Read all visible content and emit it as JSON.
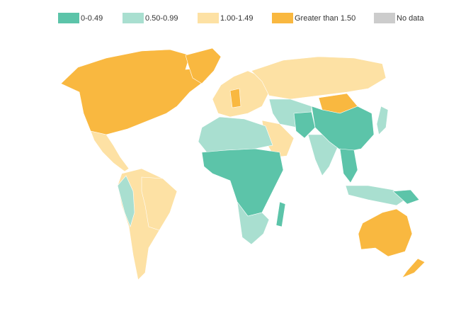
{
  "legend": {
    "items": [
      {
        "label": "0-0.49",
        "color": "#5cc4a9"
      },
      {
        "label": "0.50-0.99",
        "color": "#a9dfd0"
      },
      {
        "label": "1.00-1.49",
        "color": "#fde1a4"
      },
      {
        "label": "Greater than 1.50",
        "color": "#f9b840"
      },
      {
        "label": "No data",
        "color": "#cccccc"
      }
    ]
  }
}
